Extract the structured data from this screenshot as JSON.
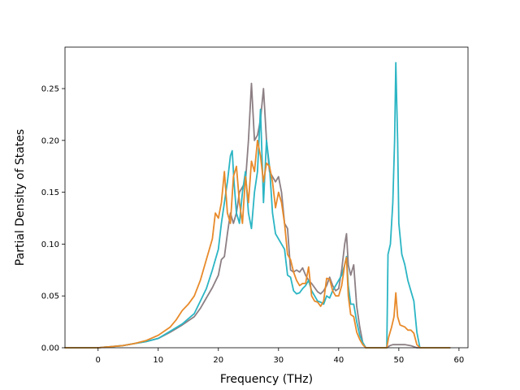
{
  "chart_data": {
    "type": "line",
    "xlabel": "Frequency (THz)",
    "ylabel": "Partial Density of States",
    "xlim": [
      -5.5,
      61.5
    ],
    "ylim": [
      0.0,
      0.29
    ],
    "xticks": [
      0,
      10,
      20,
      30,
      40,
      50,
      60
    ],
    "xtick_labels": [
      "0",
      "10",
      "20",
      "30",
      "40",
      "50",
      "60"
    ],
    "yticks": [
      0.0,
      0.05,
      0.1,
      0.15,
      0.2,
      0.25
    ],
    "ytick_labels": [
      "0.00",
      "0.05",
      "0.10",
      "0.15",
      "0.20",
      "0.25"
    ],
    "grid": false,
    "legend": "none",
    "series": [
      {
        "color": "#8c7f84",
        "points": [
          [
            -5.5,
            0
          ],
          [
            0,
            0
          ],
          [
            2,
            0.001
          ],
          [
            4,
            0.002
          ],
          [
            6,
            0.004
          ],
          [
            8,
            0.006
          ],
          [
            10,
            0.009
          ],
          [
            12,
            0.015
          ],
          [
            14,
            0.022
          ],
          [
            16,
            0.03
          ],
          [
            17,
            0.038
          ],
          [
            18,
            0.048
          ],
          [
            19,
            0.058
          ],
          [
            20,
            0.07
          ],
          [
            20.5,
            0.085
          ],
          [
            21,
            0.088
          ],
          [
            21.5,
            0.11
          ],
          [
            22,
            0.13
          ],
          [
            22.5,
            0.12
          ],
          [
            23,
            0.13
          ],
          [
            23.5,
            0.15
          ],
          [
            24,
            0.155
          ],
          [
            24.5,
            0.16
          ],
          [
            25,
            0.2
          ],
          [
            25.5,
            0.255
          ],
          [
            26,
            0.2
          ],
          [
            26.5,
            0.205
          ],
          [
            27,
            0.22
          ],
          [
            27.5,
            0.25
          ],
          [
            28,
            0.2
          ],
          [
            28.5,
            0.17
          ],
          [
            29,
            0.165
          ],
          [
            29.5,
            0.16
          ],
          [
            30,
            0.165
          ],
          [
            30.5,
            0.15
          ],
          [
            31,
            0.12
          ],
          [
            31.5,
            0.115
          ],
          [
            32,
            0.075
          ],
          [
            32.5,
            0.073
          ],
          [
            33,
            0.075
          ],
          [
            33.5,
            0.073
          ],
          [
            34,
            0.077
          ],
          [
            34.5,
            0.07
          ],
          [
            35,
            0.065
          ],
          [
            35.5,
            0.062
          ],
          [
            36,
            0.058
          ],
          [
            36.5,
            0.054
          ],
          [
            37,
            0.052
          ],
          [
            37.5,
            0.055
          ],
          [
            38,
            0.06
          ],
          [
            38.5,
            0.068
          ],
          [
            39,
            0.06
          ],
          [
            39.5,
            0.055
          ],
          [
            40,
            0.057
          ],
          [
            40.5,
            0.075
          ],
          [
            41,
            0.1
          ],
          [
            41.3,
            0.11
          ],
          [
            41.6,
            0.08
          ],
          [
            42,
            0.07
          ],
          [
            42.5,
            0.08
          ],
          [
            43,
            0.04
          ],
          [
            43.5,
            0.02
          ],
          [
            44,
            0.005
          ],
          [
            44.5,
            0
          ],
          [
            48,
            0
          ],
          [
            48.5,
            0.002
          ],
          [
            49,
            0.003
          ],
          [
            50,
            0.003
          ],
          [
            51,
            0.003
          ],
          [
            52,
            0.002
          ],
          [
            52.5,
            0.001
          ],
          [
            53,
            0
          ],
          [
            58.5,
            0
          ]
        ]
      },
      {
        "color": "#2bb5c4",
        "points": [
          [
            -5.5,
            0
          ],
          [
            0,
            0
          ],
          [
            2,
            0.001
          ],
          [
            4,
            0.002
          ],
          [
            6,
            0.004
          ],
          [
            8,
            0.006
          ],
          [
            10,
            0.009
          ],
          [
            12,
            0.016
          ],
          [
            14,
            0.023
          ],
          [
            16,
            0.033
          ],
          [
            17,
            0.045
          ],
          [
            18,
            0.057
          ],
          [
            19,
            0.075
          ],
          [
            20,
            0.095
          ],
          [
            20.5,
            0.12
          ],
          [
            21,
            0.14
          ],
          [
            21.5,
            0.16
          ],
          [
            22,
            0.185
          ],
          [
            22.3,
            0.19
          ],
          [
            22.6,
            0.16
          ],
          [
            23,
            0.13
          ],
          [
            23.5,
            0.12
          ],
          [
            24,
            0.15
          ],
          [
            24.5,
            0.17
          ],
          [
            25,
            0.13
          ],
          [
            25.5,
            0.115
          ],
          [
            26,
            0.15
          ],
          [
            26.5,
            0.17
          ],
          [
            27,
            0.23
          ],
          [
            27.5,
            0.14
          ],
          [
            28,
            0.2
          ],
          [
            28.5,
            0.175
          ],
          [
            29,
            0.13
          ],
          [
            29.5,
            0.11
          ],
          [
            30,
            0.105
          ],
          [
            30.5,
            0.1
          ],
          [
            31,
            0.095
          ],
          [
            31.5,
            0.07
          ],
          [
            32,
            0.068
          ],
          [
            32.5,
            0.055
          ],
          [
            33,
            0.052
          ],
          [
            33.5,
            0.053
          ],
          [
            34,
            0.057
          ],
          [
            34.5,
            0.06
          ],
          [
            35,
            0.065
          ],
          [
            35.5,
            0.055
          ],
          [
            36,
            0.05
          ],
          [
            36.5,
            0.045
          ],
          [
            37,
            0.044
          ],
          [
            37.5,
            0.042
          ],
          [
            38,
            0.05
          ],
          [
            38.5,
            0.048
          ],
          [
            39,
            0.055
          ],
          [
            39.5,
            0.06
          ],
          [
            40,
            0.065
          ],
          [
            40.5,
            0.07
          ],
          [
            41,
            0.08
          ],
          [
            41.3,
            0.088
          ],
          [
            41.6,
            0.06
          ],
          [
            42,
            0.042
          ],
          [
            42.5,
            0.042
          ],
          [
            43,
            0.025
          ],
          [
            43.5,
            0.012
          ],
          [
            44,
            0.005
          ],
          [
            44.5,
            0
          ],
          [
            48,
            0
          ],
          [
            48.2,
            0.09
          ],
          [
            48.6,
            0.1
          ],
          [
            49,
            0.14
          ],
          [
            49.3,
            0.2
          ],
          [
            49.5,
            0.275
          ],
          [
            49.8,
            0.2
          ],
          [
            50,
            0.12
          ],
          [
            50.5,
            0.09
          ],
          [
            51,
            0.08
          ],
          [
            51.5,
            0.065
          ],
          [
            52,
            0.055
          ],
          [
            52.5,
            0.045
          ],
          [
            53,
            0.015
          ],
          [
            53.5,
            0
          ],
          [
            58.5,
            0
          ]
        ]
      },
      {
        "color": "#e88a2a",
        "points": [
          [
            -5.5,
            0
          ],
          [
            0,
            0
          ],
          [
            2,
            0.001
          ],
          [
            4,
            0.002
          ],
          [
            6,
            0.004
          ],
          [
            8,
            0.007
          ],
          [
            10,
            0.012
          ],
          [
            12,
            0.02
          ],
          [
            13,
            0.027
          ],
          [
            14,
            0.036
          ],
          [
            15,
            0.042
          ],
          [
            16,
            0.05
          ],
          [
            17,
            0.065
          ],
          [
            18,
            0.085
          ],
          [
            19,
            0.105
          ],
          [
            19.5,
            0.13
          ],
          [
            20,
            0.125
          ],
          [
            20.5,
            0.14
          ],
          [
            21,
            0.17
          ],
          [
            21.5,
            0.13
          ],
          [
            22,
            0.12
          ],
          [
            22.5,
            0.165
          ],
          [
            23,
            0.175
          ],
          [
            23.5,
            0.14
          ],
          [
            24,
            0.12
          ],
          [
            24.5,
            0.165
          ],
          [
            25,
            0.14
          ],
          [
            25.5,
            0.18
          ],
          [
            26,
            0.17
          ],
          [
            26.5,
            0.2
          ],
          [
            27,
            0.185
          ],
          [
            27.5,
            0.16
          ],
          [
            28,
            0.178
          ],
          [
            28.5,
            0.175
          ],
          [
            29,
            0.16
          ],
          [
            29.5,
            0.135
          ],
          [
            30,
            0.15
          ],
          [
            30.5,
            0.14
          ],
          [
            31,
            0.12
          ],
          [
            31.5,
            0.09
          ],
          [
            32,
            0.085
          ],
          [
            32.5,
            0.073
          ],
          [
            33,
            0.065
          ],
          [
            33.5,
            0.06
          ],
          [
            34,
            0.062
          ],
          [
            34.5,
            0.062
          ],
          [
            35,
            0.078
          ],
          [
            35.5,
            0.05
          ],
          [
            36,
            0.045
          ],
          [
            36.5,
            0.044
          ],
          [
            37,
            0.04
          ],
          [
            37.5,
            0.045
          ],
          [
            38,
            0.067
          ],
          [
            38.5,
            0.066
          ],
          [
            39,
            0.055
          ],
          [
            39.5,
            0.05
          ],
          [
            40,
            0.05
          ],
          [
            40.5,
            0.06
          ],
          [
            41,
            0.08
          ],
          [
            41.3,
            0.087
          ],
          [
            41.6,
            0.05
          ],
          [
            42,
            0.032
          ],
          [
            42.5,
            0.03
          ],
          [
            43,
            0.015
          ],
          [
            43.5,
            0.008
          ],
          [
            44,
            0.003
          ],
          [
            44.5,
            0
          ],
          [
            48,
            0
          ],
          [
            48.3,
            0.01
          ],
          [
            48.8,
            0.02
          ],
          [
            49.2,
            0.03
          ],
          [
            49.5,
            0.053
          ],
          [
            49.8,
            0.03
          ],
          [
            50.2,
            0.022
          ],
          [
            51,
            0.02
          ],
          [
            51.5,
            0.017
          ],
          [
            52,
            0.017
          ],
          [
            52.5,
            0.014
          ],
          [
            53,
            0.003
          ],
          [
            53.5,
            0
          ],
          [
            58.5,
            0
          ]
        ]
      }
    ]
  }
}
